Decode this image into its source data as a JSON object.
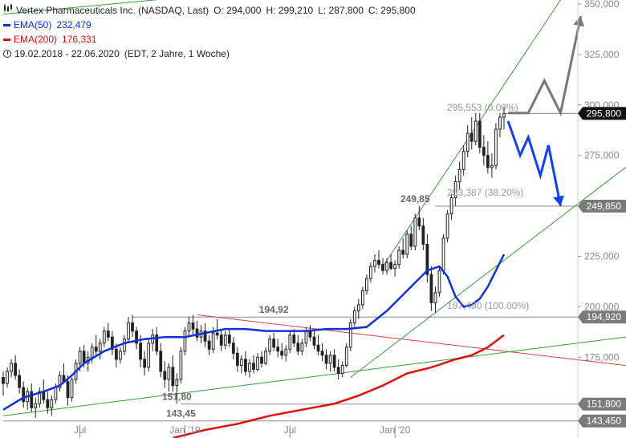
{
  "header": {
    "title": "Vertex Pharmaceuticals Inc. (NASDAQ, Last)",
    "ohlc": {
      "o": "O: 294,000",
      "h": "H: 299,210",
      "l": "L: 287,800",
      "c": "C: 295,800"
    },
    "ema50": {
      "label": "EMA(50)",
      "value": "232,479",
      "color": "#1030e0"
    },
    "ema200": {
      "label": "EMA(200)",
      "value": "176,331",
      "color": "#e01010"
    },
    "period": "19.02.2018 - 22.06.2020",
    "period_info": "(EDT, 2 Jahre, 1 Woche)"
  },
  "chart_data": {
    "type": "candlestick",
    "ylim": [
      135,
      352
    ],
    "y_ticks": [
      "175,000",
      "200,000",
      "225,000",
      "250,000",
      "275,000",
      "300,000",
      "325,000",
      "350,000"
    ],
    "y_tick_values": [
      175,
      200,
      225,
      250,
      275,
      300,
      325,
      350
    ],
    "x_ticks": [
      "Jul",
      "Jan '19",
      "Jul",
      "Jan '20"
    ],
    "x_tick_weeks": [
      19,
      45,
      71,
      97
    ],
    "price_tags": [
      {
        "label": "295,800",
        "value": 295.8,
        "style": "dark"
      },
      {
        "label": "249,850",
        "value": 249.85,
        "style": "grey"
      },
      {
        "label": "194,920",
        "value": 194.92,
        "style": "grey"
      },
      {
        "label": "151,800",
        "value": 151.8,
        "style": "grey"
      },
      {
        "label": "143,450",
        "value": 143.45,
        "style": "grey"
      }
    ],
    "annotations": [
      {
        "text": "194,92",
        "week": 67,
        "value": 194.92
      },
      {
        "text": "249,85",
        "week": 102,
        "value": 249.85
      },
      {
        "text": "151,80",
        "week": 43,
        "value": 151.8
      },
      {
        "text": "143,45",
        "week": 44,
        "value": 143.45
      }
    ],
    "fib_levels": [
      {
        "label": "295,553 (0.00%)",
        "value": 295.553
      },
      {
        "label": "253,387 (38.20%)",
        "value": 253.387
      },
      {
        "label": "197,490 (100.00%)",
        "value": 197.49
      }
    ],
    "horizontal_lines": [
      {
        "from": 32,
        "value": 194.92
      },
      {
        "from": 107,
        "value": 249.85
      },
      {
        "from": 44,
        "value": 151.8
      },
      {
        "from": 0,
        "value": 143.45
      },
      {
        "from": 124,
        "value": 295.8
      }
    ],
    "trendlines": [
      {
        "name": "resistance",
        "color": "#e04040",
        "points": [
          [
            48,
            196
          ],
          [
            158,
            170
          ]
        ]
      },
      {
        "name": "long-support",
        "color": "#3a9a3a",
        "points": [
          [
            0,
            146
          ],
          [
            158,
            186
          ]
        ]
      },
      {
        "name": "channel-lower",
        "color": "#3a9a3a",
        "points": [
          [
            86,
            165
          ],
          [
            158,
            275
          ]
        ]
      },
      {
        "name": "channel-upper",
        "color": "#3a9a3a",
        "points": [
          [
            94,
            220
          ],
          [
            138,
            352
          ]
        ]
      },
      {
        "name": "old-upper",
        "color": "#3a9a3a",
        "points": [
          [
            0,
            345
          ],
          [
            80,
            360
          ]
        ]
      }
    ],
    "scenario_up": {
      "color": "#777777",
      "points": [
        [
          125,
          296
        ],
        [
          130,
          296
        ],
        [
          134,
          312
        ],
        [
          138,
          296
        ],
        [
          143,
          344
        ]
      ]
    },
    "scenario_down": {
      "color": "#1040ff",
      "points": [
        [
          125,
          292
        ],
        [
          128,
          275
        ],
        [
          130,
          284
        ],
        [
          133,
          265
        ],
        [
          135,
          280
        ],
        [
          138,
          250
        ]
      ]
    },
    "ema50": [
      [
        0,
        149
      ],
      [
        5,
        155
      ],
      [
        10,
        158
      ],
      [
        14,
        161
      ],
      [
        17,
        166
      ],
      [
        20,
        172
      ],
      [
        25,
        178
      ],
      [
        30,
        182
      ],
      [
        35,
        184
      ],
      [
        40,
        185
      ],
      [
        45,
        185
      ],
      [
        50,
        187
      ],
      [
        55,
        189
      ],
      [
        60,
        189
      ],
      [
        65,
        188
      ],
      [
        70,
        188
      ],
      [
        75,
        188
      ],
      [
        80,
        189
      ],
      [
        85,
        189
      ],
      [
        90,
        190
      ],
      [
        95,
        198
      ],
      [
        100,
        208
      ],
      [
        105,
        218
      ],
      [
        108,
        220
      ],
      [
        110,
        215
      ],
      [
        112,
        205
      ],
      [
        114,
        200
      ],
      [
        116,
        201
      ],
      [
        118,
        204
      ],
      [
        120,
        210
      ],
      [
        122,
        218
      ],
      [
        124,
        226
      ]
    ],
    "ema200": [
      [
        42,
        135
      ],
      [
        50,
        139
      ],
      [
        58,
        142
      ],
      [
        66,
        146
      ],
      [
        74,
        149
      ],
      [
        82,
        152
      ],
      [
        88,
        156
      ],
      [
        94,
        161
      ],
      [
        100,
        167
      ],
      [
        106,
        170
      ],
      [
        112,
        174
      ],
      [
        116,
        176
      ],
      [
        120,
        180
      ],
      [
        124,
        186
      ]
    ],
    "candles": [
      {
        "o": 165,
        "h": 168,
        "l": 156,
        "c": 162
      },
      {
        "o": 162,
        "h": 170,
        "l": 160,
        "c": 168
      },
      {
        "o": 168,
        "h": 174,
        "l": 165,
        "c": 172
      },
      {
        "o": 172,
        "h": 176,
        "l": 164,
        "c": 166
      },
      {
        "o": 166,
        "h": 169,
        "l": 157,
        "c": 160
      },
      {
        "o": 160,
        "h": 163,
        "l": 150,
        "c": 153
      },
      {
        "o": 153,
        "h": 160,
        "l": 149,
        "c": 158
      },
      {
        "o": 158,
        "h": 162,
        "l": 148,
        "c": 150
      },
      {
        "o": 150,
        "h": 155,
        "l": 145,
        "c": 152
      },
      {
        "o": 152,
        "h": 160,
        "l": 150,
        "c": 158
      },
      {
        "o": 158,
        "h": 164,
        "l": 152,
        "c": 154
      },
      {
        "o": 154,
        "h": 158,
        "l": 147,
        "c": 150
      },
      {
        "o": 150,
        "h": 156,
        "l": 146,
        "c": 154
      },
      {
        "o": 154,
        "h": 162,
        "l": 152,
        "c": 160
      },
      {
        "o": 160,
        "h": 168,
        "l": 158,
        "c": 166
      },
      {
        "o": 166,
        "h": 172,
        "l": 162,
        "c": 163
      },
      {
        "o": 163,
        "h": 166,
        "l": 151,
        "c": 155
      },
      {
        "o": 155,
        "h": 165,
        "l": 153,
        "c": 164
      },
      {
        "o": 164,
        "h": 174,
        "l": 162,
        "c": 172
      },
      {
        "o": 172,
        "h": 180,
        "l": 168,
        "c": 178
      },
      {
        "o": 178,
        "h": 181,
        "l": 170,
        "c": 172
      },
      {
        "o": 172,
        "h": 178,
        "l": 168,
        "c": 175
      },
      {
        "o": 175,
        "h": 182,
        "l": 172,
        "c": 180
      },
      {
        "o": 180,
        "h": 186,
        "l": 176,
        "c": 178
      },
      {
        "o": 178,
        "h": 184,
        "l": 174,
        "c": 182
      },
      {
        "o": 182,
        "h": 190,
        "l": 180,
        "c": 188
      },
      {
        "o": 188,
        "h": 192,
        "l": 183,
        "c": 185
      },
      {
        "o": 185,
        "h": 188,
        "l": 176,
        "c": 179
      },
      {
        "o": 179,
        "h": 182,
        "l": 170,
        "c": 174
      },
      {
        "o": 174,
        "h": 180,
        "l": 172,
        "c": 178
      },
      {
        "o": 178,
        "h": 186,
        "l": 176,
        "c": 184
      },
      {
        "o": 184,
        "h": 195,
        "l": 182,
        "c": 192
      },
      {
        "o": 192,
        "h": 196,
        "l": 185,
        "c": 188
      },
      {
        "o": 188,
        "h": 190,
        "l": 179,
        "c": 182
      },
      {
        "o": 182,
        "h": 186,
        "l": 170,
        "c": 174
      },
      {
        "o": 174,
        "h": 178,
        "l": 166,
        "c": 170
      },
      {
        "o": 170,
        "h": 184,
        "l": 168,
        "c": 182
      },
      {
        "o": 182,
        "h": 189,
        "l": 178,
        "c": 186
      },
      {
        "o": 186,
        "h": 190,
        "l": 176,
        "c": 178
      },
      {
        "o": 178,
        "h": 182,
        "l": 165,
        "c": 168
      },
      {
        "o": 168,
        "h": 173,
        "l": 160,
        "c": 164
      },
      {
        "o": 164,
        "h": 172,
        "l": 158,
        "c": 170
      },
      {
        "o": 170,
        "h": 176,
        "l": 158,
        "c": 161
      },
      {
        "o": 161,
        "h": 167,
        "l": 152,
        "c": 164
      },
      {
        "o": 164,
        "h": 180,
        "l": 162,
        "c": 178
      },
      {
        "o": 178,
        "h": 190,
        "l": 176,
        "c": 188
      },
      {
        "o": 188,
        "h": 195,
        "l": 185,
        "c": 192
      },
      {
        "o": 192,
        "h": 196,
        "l": 186,
        "c": 189
      },
      {
        "o": 189,
        "h": 193,
        "l": 183,
        "c": 185
      },
      {
        "o": 185,
        "h": 191,
        "l": 182,
        "c": 188
      },
      {
        "o": 188,
        "h": 192,
        "l": 180,
        "c": 183
      },
      {
        "o": 183,
        "h": 186,
        "l": 176,
        "c": 179
      },
      {
        "o": 179,
        "h": 190,
        "l": 177,
        "c": 187
      },
      {
        "o": 187,
        "h": 194,
        "l": 184,
        "c": 186
      },
      {
        "o": 186,
        "h": 189,
        "l": 178,
        "c": 181
      },
      {
        "o": 181,
        "h": 188,
        "l": 179,
        "c": 186
      },
      {
        "o": 186,
        "h": 189,
        "l": 180,
        "c": 182
      },
      {
        "o": 182,
        "h": 185,
        "l": 174,
        "c": 177
      },
      {
        "o": 177,
        "h": 180,
        "l": 168,
        "c": 171
      },
      {
        "o": 171,
        "h": 176,
        "l": 167,
        "c": 174
      },
      {
        "o": 174,
        "h": 178,
        "l": 166,
        "c": 168
      },
      {
        "o": 168,
        "h": 174,
        "l": 165,
        "c": 172
      },
      {
        "o": 172,
        "h": 176,
        "l": 167,
        "c": 169
      },
      {
        "o": 169,
        "h": 177,
        "l": 168,
        "c": 175
      },
      {
        "o": 175,
        "h": 178,
        "l": 170,
        "c": 172
      },
      {
        "o": 172,
        "h": 180,
        "l": 171,
        "c": 178
      },
      {
        "o": 178,
        "h": 186,
        "l": 176,
        "c": 184
      },
      {
        "o": 184,
        "h": 187,
        "l": 178,
        "c": 180
      },
      {
        "o": 180,
        "h": 184,
        "l": 175,
        "c": 178
      },
      {
        "o": 178,
        "h": 182,
        "l": 174,
        "c": 176
      },
      {
        "o": 176,
        "h": 181,
        "l": 173,
        "c": 179
      },
      {
        "o": 179,
        "h": 188,
        "l": 177,
        "c": 186
      },
      {
        "o": 186,
        "h": 189,
        "l": 180,
        "c": 182
      },
      {
        "o": 182,
        "h": 186,
        "l": 176,
        "c": 178
      },
      {
        "o": 178,
        "h": 184,
        "l": 176,
        "c": 182
      },
      {
        "o": 182,
        "h": 190,
        "l": 180,
        "c": 188
      },
      {
        "o": 188,
        "h": 191,
        "l": 183,
        "c": 185
      },
      {
        "o": 185,
        "h": 188,
        "l": 179,
        "c": 181
      },
      {
        "o": 181,
        "h": 186,
        "l": 176,
        "c": 178
      },
      {
        "o": 178,
        "h": 182,
        "l": 173,
        "c": 176
      },
      {
        "o": 176,
        "h": 179,
        "l": 169,
        "c": 172
      },
      {
        "o": 172,
        "h": 178,
        "l": 168,
        "c": 176
      },
      {
        "o": 176,
        "h": 179,
        "l": 168,
        "c": 170
      },
      {
        "o": 170,
        "h": 174,
        "l": 164,
        "c": 167
      },
      {
        "o": 167,
        "h": 173,
        "l": 165,
        "c": 171
      },
      {
        "o": 171,
        "h": 182,
        "l": 170,
        "c": 180
      },
      {
        "o": 180,
        "h": 194,
        "l": 178,
        "c": 192
      },
      {
        "o": 192,
        "h": 200,
        "l": 190,
        "c": 198
      },
      {
        "o": 198,
        "h": 204,
        "l": 194,
        "c": 201
      },
      {
        "o": 201,
        "h": 210,
        "l": 199,
        "c": 208
      },
      {
        "o": 208,
        "h": 216,
        "l": 206,
        "c": 214
      },
      {
        "o": 214,
        "h": 222,
        "l": 212,
        "c": 220
      },
      {
        "o": 220,
        "h": 226,
        "l": 217,
        "c": 223
      },
      {
        "o": 223,
        "h": 228,
        "l": 219,
        "c": 221
      },
      {
        "o": 221,
        "h": 224,
        "l": 216,
        "c": 218
      },
      {
        "o": 218,
        "h": 224,
        "l": 216,
        "c": 222
      },
      {
        "o": 222,
        "h": 226,
        "l": 218,
        "c": 219
      },
      {
        "o": 219,
        "h": 223,
        "l": 215,
        "c": 221
      },
      {
        "o": 221,
        "h": 230,
        "l": 219,
        "c": 228
      },
      {
        "o": 228,
        "h": 234,
        "l": 224,
        "c": 226
      },
      {
        "o": 226,
        "h": 238,
        "l": 224,
        "c": 236
      },
      {
        "o": 236,
        "h": 240,
        "l": 228,
        "c": 230
      },
      {
        "o": 230,
        "h": 246,
        "l": 228,
        "c": 244
      },
      {
        "o": 244,
        "h": 250,
        "l": 238,
        "c": 240
      },
      {
        "o": 240,
        "h": 244,
        "l": 228,
        "c": 231
      },
      {
        "o": 231,
        "h": 236,
        "l": 212,
        "c": 216
      },
      {
        "o": 216,
        "h": 220,
        "l": 198,
        "c": 202
      },
      {
        "o": 202,
        "h": 210,
        "l": 197,
        "c": 207
      },
      {
        "o": 207,
        "h": 220,
        "l": 205,
        "c": 218
      },
      {
        "o": 218,
        "h": 236,
        "l": 216,
        "c": 234
      },
      {
        "o": 234,
        "h": 248,
        "l": 232,
        "c": 246
      },
      {
        "o": 246,
        "h": 256,
        "l": 243,
        "c": 254
      },
      {
        "o": 254,
        "h": 265,
        "l": 250,
        "c": 262
      },
      {
        "o": 262,
        "h": 272,
        "l": 258,
        "c": 268
      },
      {
        "o": 268,
        "h": 280,
        "l": 265,
        "c": 277
      },
      {
        "o": 277,
        "h": 290,
        "l": 274,
        "c": 286
      },
      {
        "o": 286,
        "h": 294,
        "l": 278,
        "c": 282
      },
      {
        "o": 282,
        "h": 296,
        "l": 280,
        "c": 292
      },
      {
        "o": 292,
        "h": 296,
        "l": 276,
        "c": 279
      },
      {
        "o": 279,
        "h": 285,
        "l": 270,
        "c": 275
      },
      {
        "o": 275,
        "h": 282,
        "l": 266,
        "c": 269
      },
      {
        "o": 269,
        "h": 276,
        "l": 264,
        "c": 270
      },
      {
        "o": 270,
        "h": 291,
        "l": 268,
        "c": 288
      },
      {
        "o": 288,
        "h": 296,
        "l": 284,
        "c": 294
      },
      {
        "o": 294,
        "h": 299.21,
        "l": 287.8,
        "c": 295.8
      }
    ]
  }
}
